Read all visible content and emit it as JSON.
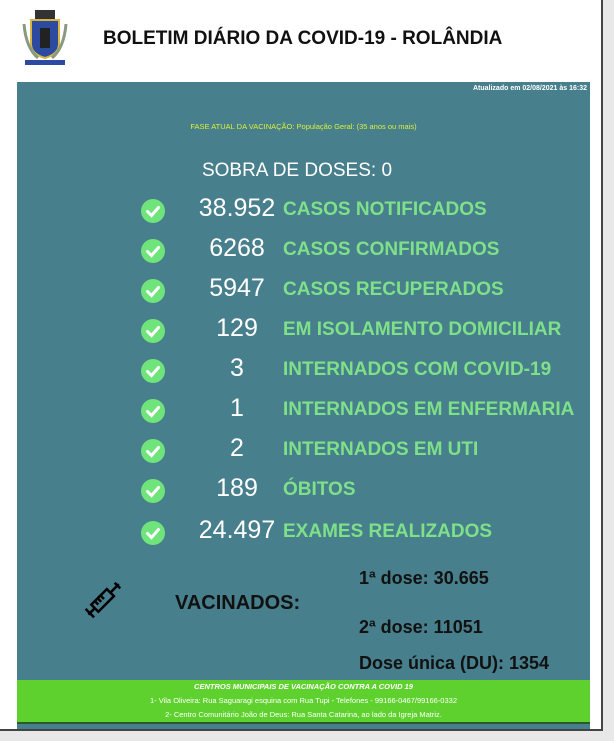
{
  "header": {
    "title": "BOLETIM DIÁRIO DA COVID-19 - ROLÂNDIA"
  },
  "updated": "Atualizado em 02/08/2021 às 16:32",
  "fase": "FASE ATUAL DA VACINAÇÃO: População Geral: (35 anos ou mais)",
  "sobra": "SOBRA DE DOSES: 0",
  "stats": [
    {
      "value": "38.952",
      "label": "CASOS NOTIFICADOS"
    },
    {
      "value": "6268",
      "label": "CASOS CONFIRMADOS"
    },
    {
      "value": "5947",
      "label": "CASOS RECUPERADOS"
    },
    {
      "value": "129",
      "label": "EM ISOLAMENTO DOMICILIAR"
    },
    {
      "value": "3",
      "label": "INTERNADOS COM COVID-19"
    },
    {
      "value": "1",
      "label": "INTERNADOS EM ENFERMARIA"
    },
    {
      "value": "2",
      "label": "INTERNADOS EM UTI"
    },
    {
      "value": "189",
      "label": "ÓBITOS"
    },
    {
      "value": "24.497",
      "label": "EXAMES REALIZADOS"
    }
  ],
  "vacinados": {
    "label": "VACINADOS:",
    "dose1": "1ª dose: 30.665",
    "dose2": "2ª dose: 11051",
    "dose_unica": "Dose única (DU): 1354"
  },
  "footer": {
    "heading": "CENTROS MUNICIPAIS DE VACINAÇÃO CONTRA A COVID 19",
    "line1": "1- Vila Oliveira: Rua Saguaragi esquina com Rua Tupi - Telefones - 99166-0467/99166-0332",
    "line2": "2- Centro Comunitário João de Deus: Rua Santa Catarina, ao lado da Igreja Matriz."
  },
  "colors": {
    "panel": "#477f8c",
    "label": "#7fe08a",
    "check": "#6ee47a",
    "footer": "#5fd12e"
  }
}
